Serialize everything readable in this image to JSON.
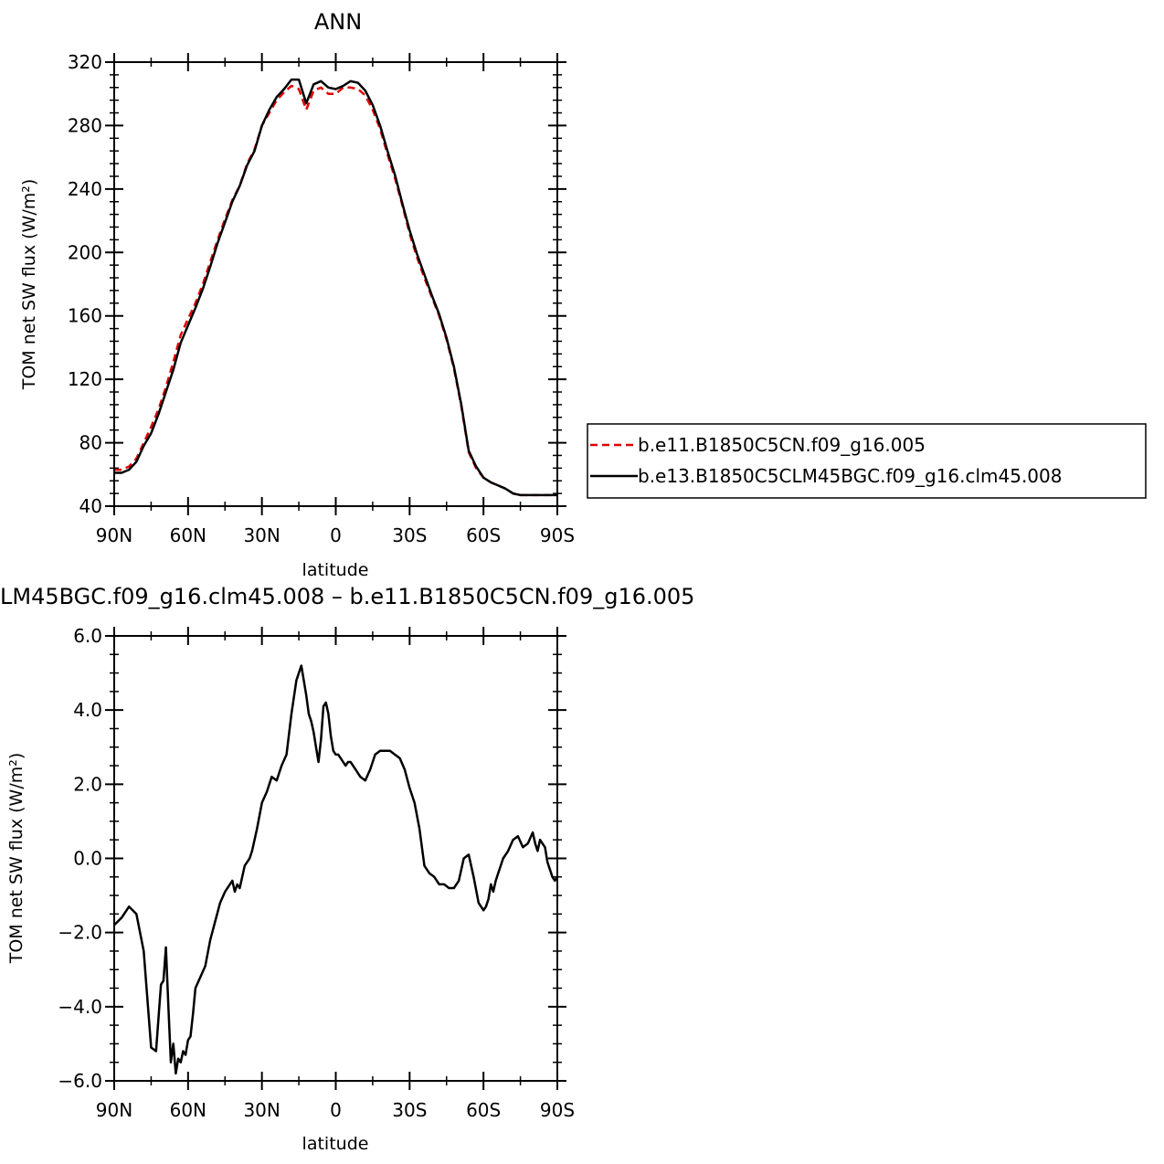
{
  "chart_data": [
    {
      "type": "line",
      "title": "ANN",
      "xlabel": "latitude",
      "ylabel": "TOM net SW flux (W/m²)",
      "xlim": [
        90,
        -90
      ],
      "ylim": [
        40,
        320
      ],
      "xticks": [
        90,
        60,
        30,
        0,
        -30,
        -60,
        -90
      ],
      "xtick_labels": [
        "90N",
        "60N",
        "30N",
        "0",
        "30S",
        "60S",
        "90S"
      ],
      "yticks": [
        40,
        80,
        120,
        160,
        200,
        240,
        280,
        320
      ],
      "ytick_labels": [
        "40",
        "80",
        "120",
        "160",
        "200",
        "240",
        "280",
        "320"
      ],
      "grid": false,
      "legend_position": "right",
      "series": [
        {
          "name": "b.e11.B1850C5CN.f09_g16.005",
          "color": "#e00000",
          "dash": "dashed",
          "x": [
            90,
            87,
            84,
            81,
            78,
            75,
            72,
            69,
            66,
            63,
            60,
            57,
            54,
            51,
            48,
            45,
            42,
            39,
            36,
            33,
            30,
            27,
            24,
            21,
            18,
            15,
            12,
            9,
            6,
            3,
            0,
            -3,
            -6,
            -9,
            -12,
            -15,
            -18,
            -21,
            -24,
            -27,
            -30,
            -33,
            -36,
            -39,
            -42,
            -45,
            -48,
            -51,
            -54,
            -57,
            -60,
            -63,
            -66,
            -69,
            -72,
            -75,
            -78,
            -81,
            -84,
            -87,
            -90
          ],
          "y": [
            63,
            63,
            65,
            70,
            80,
            90,
            101,
            115,
            131,
            148,
            158,
            168,
            180,
            194,
            208,
            221,
            233,
            242,
            256,
            265,
            280,
            288,
            296,
            301,
            305,
            303,
            290,
            302,
            304,
            300,
            300,
            304,
            304,
            303,
            299,
            290,
            278,
            262,
            247,
            230,
            212,
            197,
            184,
            172,
            160,
            145,
            127,
            103,
            74,
            64,
            58,
            55,
            53,
            51,
            48,
            47,
            47,
            47,
            47,
            47,
            47
          ]
        },
        {
          "name": "b.e13.B1850C5CLM45BGC.f09_g16.clm45.008",
          "color": "#000000",
          "dash": "solid",
          "x": [
            90,
            87,
            84,
            81,
            78,
            75,
            72,
            69,
            66,
            63,
            60,
            57,
            54,
            51,
            48,
            45,
            42,
            39,
            36,
            33,
            30,
            27,
            24,
            21,
            18,
            15,
            12,
            9,
            6,
            3,
            0,
            -3,
            -6,
            -9,
            -12,
            -15,
            -18,
            -21,
            -24,
            -27,
            -30,
            -33,
            -36,
            -39,
            -42,
            -45,
            -48,
            -51,
            -54,
            -57,
            -60,
            -63,
            -66,
            -69,
            -72,
            -75,
            -78,
            -81,
            -84,
            -87,
            -90
          ],
          "y": [
            61,
            61,
            63,
            68,
            78,
            86,
            98,
            112,
            126,
            143,
            154,
            165,
            177,
            191,
            206,
            219,
            232,
            242,
            255,
            264,
            280,
            290,
            298,
            303,
            309,
            309,
            294,
            306,
            308,
            304,
            303,
            305,
            308,
            307,
            302,
            293,
            280,
            264,
            249,
            231,
            214,
            199,
            186,
            173,
            161,
            146,
            128,
            104,
            75,
            65,
            58,
            55,
            53,
            51,
            48,
            47,
            47,
            47,
            47,
            47,
            47
          ]
        }
      ]
    },
    {
      "type": "line",
      "title": "LM45BGC.f09_g16.clm45.008 – b.e11.B1850C5CN.f09_g16.005",
      "xlabel": "latitude",
      "ylabel": "TOM net SW flux (W/m²)",
      "xlim": [
        90,
        -90
      ],
      "ylim": [
        -6.0,
        6.0
      ],
      "xticks": [
        90,
        60,
        30,
        0,
        -30,
        -60,
        -90
      ],
      "xtick_labels": [
        "90N",
        "60N",
        "30N",
        "0",
        "30S",
        "60S",
        "90S"
      ],
      "yticks": [
        -6.0,
        -4.0,
        -2.0,
        0.0,
        2.0,
        4.0,
        6.0
      ],
      "ytick_labels": [
        "−6.0",
        "−4.0",
        "−2.0",
        "0.0",
        "2.0",
        "4.0",
        "6.0"
      ],
      "grid": false,
      "series": [
        {
          "color": "#000000",
          "dash": "solid",
          "x": [
            90,
            87,
            84,
            81,
            78,
            75,
            73,
            72,
            71,
            70,
            69,
            68,
            67,
            66,
            65,
            64,
            63,
            62,
            61,
            60,
            59,
            58,
            57,
            55,
            53,
            51,
            49,
            47,
            45,
            43,
            42,
            41,
            40,
            39,
            38,
            37,
            36,
            35,
            34,
            32,
            30,
            28,
            26,
            24,
            22,
            20,
            18,
            16,
            14,
            12,
            11,
            10,
            9,
            8,
            7,
            6,
            5,
            4,
            3,
            2,
            1,
            0,
            -1,
            -2,
            -3,
            -4,
            -5,
            -6,
            -8,
            -10,
            -12,
            -14,
            -16,
            -18,
            -20,
            -22,
            -24,
            -26,
            -28,
            -30,
            -32,
            -34,
            -36,
            -38,
            -40,
            -42,
            -44,
            -46,
            -48,
            -50,
            -52,
            -54,
            -56,
            -58,
            -60,
            -61,
            -62,
            -63,
            -64,
            -65,
            -66,
            -67,
            -68,
            -70,
            -72,
            -74,
            -76,
            -78,
            -80,
            -81,
            -82,
            -83,
            -84,
            -85,
            -86,
            -87,
            -88,
            -89,
            -90
          ],
          "y": [
            -1.8,
            -1.6,
            -1.3,
            -1.5,
            -2.5,
            -5.1,
            -5.2,
            -4.3,
            -3.4,
            -3.3,
            -2.4,
            -4.0,
            -5.5,
            -5.0,
            -5.8,
            -5.4,
            -5.5,
            -5.2,
            -5.3,
            -4.9,
            -4.8,
            -4.2,
            -3.5,
            -3.2,
            -2.9,
            -2.2,
            -1.7,
            -1.2,
            -0.9,
            -0.7,
            -0.6,
            -0.9,
            -0.7,
            -0.8,
            -0.5,
            -0.2,
            -0.1,
            0.0,
            0.2,
            0.8,
            1.5,
            1.8,
            2.2,
            2.1,
            2.5,
            2.8,
            3.9,
            4.8,
            5.2,
            4.4,
            3.9,
            3.7,
            3.4,
            3.0,
            2.6,
            3.2,
            4.1,
            4.2,
            3.9,
            3.3,
            2.9,
            2.8,
            2.8,
            2.7,
            2.6,
            2.5,
            2.6,
            2.6,
            2.4,
            2.2,
            2.1,
            2.4,
            2.8,
            2.9,
            2.9,
            2.9,
            2.8,
            2.7,
            2.4,
            1.9,
            1.5,
            0.8,
            -0.2,
            -0.4,
            -0.5,
            -0.7,
            -0.7,
            -0.8,
            -0.8,
            -0.6,
            0.0,
            0.1,
            -0.5,
            -1.2,
            -1.4,
            -1.3,
            -1.1,
            -0.7,
            -0.9,
            -0.6,
            -0.4,
            -0.2,
            0.0,
            0.2,
            0.5,
            0.6,
            0.3,
            0.4,
            0.7,
            0.4,
            0.2,
            0.5,
            0.4,
            0.3,
            -0.1,
            -0.3,
            -0.5,
            -0.6,
            -0.5
          ]
        }
      ]
    }
  ],
  "legend": {
    "entries": [
      "b.e11.B1850C5CN.f09_g16.005",
      "b.e13.B1850C5CLM45BGC.f09_g16.clm45.008"
    ]
  }
}
